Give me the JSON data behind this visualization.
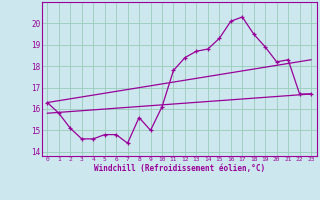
{
  "xlabel": "Windchill (Refroidissement éolien,°C)",
  "bg_color": "#cce8ee",
  "line_color": "#990099",
  "grid_color": "#99ccbb",
  "xlim": [
    -0.5,
    23.5
  ],
  "ylim": [
    13.8,
    21.0
  ],
  "yticks": [
    14,
    15,
    16,
    17,
    18,
    19,
    20
  ],
  "xticks": [
    0,
    1,
    2,
    3,
    4,
    5,
    6,
    7,
    8,
    9,
    10,
    11,
    12,
    13,
    14,
    15,
    16,
    17,
    18,
    19,
    20,
    21,
    22,
    23
  ],
  "line1_x": [
    0,
    1,
    2,
    3,
    4,
    5,
    6,
    7,
    8,
    9,
    10,
    11,
    12,
    13,
    14,
    15,
    16,
    17,
    18,
    19,
    20,
    21,
    22,
    23
  ],
  "line1_y": [
    16.3,
    15.8,
    15.1,
    14.6,
    14.6,
    14.8,
    14.8,
    14.4,
    15.6,
    15.0,
    16.1,
    17.8,
    18.4,
    18.7,
    18.8,
    19.3,
    20.1,
    20.3,
    19.5,
    18.9,
    18.2,
    18.3,
    16.7,
    16.7
  ],
  "line2_x": [
    0,
    23
  ],
  "line2_y": [
    15.8,
    16.7
  ],
  "line3_x": [
    0,
    23
  ],
  "line3_y": [
    16.3,
    18.3
  ]
}
